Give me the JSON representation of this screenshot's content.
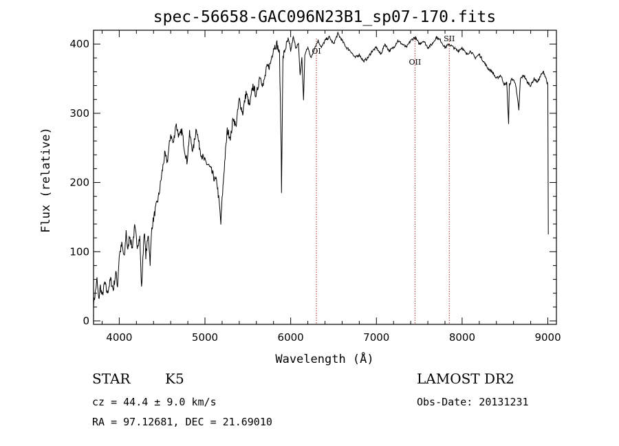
{
  "chart_data": {
    "type": "line",
    "title": "spec-56658-GAC096N23B1_sp07-170.fits",
    "xlabel": "Wavelength (Å)",
    "ylabel": "Flux (relative)",
    "xlim": [
      3700,
      9100
    ],
    "ylim": [
      -5,
      420
    ],
    "xticks": [
      4000,
      5000,
      6000,
      7000,
      8000,
      9000
    ],
    "yticks": [
      0,
      100,
      200,
      300,
      400
    ],
    "spectrum": [
      [
        3700,
        25
      ],
      [
        3720,
        40
      ],
      [
        3740,
        60
      ],
      [
        3760,
        30
      ],
      [
        3780,
        50
      ],
      [
        3800,
        35
      ],
      [
        3830,
        55
      ],
      [
        3860,
        40
      ],
      [
        3900,
        60
      ],
      [
        3930,
        45
      ],
      [
        3960,
        70
      ],
      [
        3980,
        50
      ],
      [
        4000,
        95
      ],
      [
        4030,
        110
      ],
      [
        4060,
        90
      ],
      [
        4080,
        130
      ],
      [
        4100,
        100
      ],
      [
        4120,
        125
      ],
      [
        4150,
        105
      ],
      [
        4180,
        135
      ],
      [
        4210,
        110
      ],
      [
        4240,
        120
      ],
      [
        4260,
        45
      ],
      [
        4290,
        130
      ],
      [
        4310,
        95
      ],
      [
        4340,
        125
      ],
      [
        4360,
        85
      ],
      [
        4380,
        135
      ],
      [
        4420,
        160
      ],
      [
        4460,
        180
      ],
      [
        4500,
        215
      ],
      [
        4530,
        240
      ],
      [
        4560,
        230
      ],
      [
        4600,
        270
      ],
      [
        4630,
        255
      ],
      [
        4660,
        285
      ],
      [
        4700,
        265
      ],
      [
        4730,
        275
      ],
      [
        4760,
        250
      ],
      [
        4790,
        230
      ],
      [
        4820,
        270
      ],
      [
        4860,
        245
      ],
      [
        4900,
        280
      ],
      [
        4930,
        255
      ],
      [
        4960,
        240
      ],
      [
        5000,
        230
      ],
      [
        5040,
        225
      ],
      [
        5080,
        215
      ],
      [
        5110,
        205
      ],
      [
        5140,
        200
      ],
      [
        5170,
        165
      ],
      [
        5185,
        140
      ],
      [
        5200,
        175
      ],
      [
        5230,
        230
      ],
      [
        5260,
        275
      ],
      [
        5300,
        265
      ],
      [
        5330,
        295
      ],
      [
        5360,
        280
      ],
      [
        5400,
        320
      ],
      [
        5440,
        300
      ],
      [
        5480,
        330
      ],
      [
        5520,
        310
      ],
      [
        5560,
        340
      ],
      [
        5600,
        325
      ],
      [
        5640,
        355
      ],
      [
        5680,
        340
      ],
      [
        5720,
        365
      ],
      [
        5760,
        370
      ],
      [
        5800,
        395
      ],
      [
        5840,
        400
      ],
      [
        5870,
        385
      ],
      [
        5889,
        250
      ],
      [
        5893,
        185
      ],
      [
        5896,
        225
      ],
      [
        5910,
        380
      ],
      [
        5940,
        395
      ],
      [
        5970,
        405
      ],
      [
        6000,
        390
      ],
      [
        6030,
        410
      ],
      [
        6060,
        395
      ],
      [
        6090,
        400
      ],
      [
        6110,
        355
      ],
      [
        6130,
        380
      ],
      [
        6150,
        320
      ],
      [
        6165,
        385
      ],
      [
        6200,
        395
      ],
      [
        6240,
        380
      ],
      [
        6280,
        395
      ],
      [
        6320,
        405
      ],
      [
        6360,
        395
      ],
      [
        6400,
        405
      ],
      [
        6450,
        410
      ],
      [
        6500,
        400
      ],
      [
        6550,
        415
      ],
      [
        6600,
        405
      ],
      [
        6650,
        395
      ],
      [
        6700,
        390
      ],
      [
        6750,
        380
      ],
      [
        6800,
        385
      ],
      [
        6850,
        375
      ],
      [
        6900,
        380
      ],
      [
        6950,
        390
      ],
      [
        7000,
        395
      ],
      [
        7050,
        385
      ],
      [
        7100,
        400
      ],
      [
        7150,
        390
      ],
      [
        7200,
        395
      ],
      [
        7250,
        405
      ],
      [
        7300,
        400
      ],
      [
        7350,
        395
      ],
      [
        7400,
        405
      ],
      [
        7450,
        410
      ],
      [
        7500,
        400
      ],
      [
        7550,
        405
      ],
      [
        7600,
        395
      ],
      [
        7650,
        400
      ],
      [
        7700,
        410
      ],
      [
        7750,
        405
      ],
      [
        7800,
        395
      ],
      [
        7850,
        400
      ],
      [
        7900,
        395
      ],
      [
        7950,
        390
      ],
      [
        8000,
        395
      ],
      [
        8050,
        385
      ],
      [
        8100,
        390
      ],
      [
        8150,
        380
      ],
      [
        8200,
        385
      ],
      [
        8250,
        375
      ],
      [
        8300,
        365
      ],
      [
        8350,
        360
      ],
      [
        8400,
        350
      ],
      [
        8450,
        355
      ],
      [
        8498,
        340
      ],
      [
        8520,
        345
      ],
      [
        8542,
        285
      ],
      [
        8550,
        340
      ],
      [
        8580,
        350
      ],
      [
        8620,
        345
      ],
      [
        8662,
        305
      ],
      [
        8680,
        350
      ],
      [
        8720,
        355
      ],
      [
        8760,
        345
      ],
      [
        8800,
        340
      ],
      [
        8840,
        350
      ],
      [
        8880,
        345
      ],
      [
        8920,
        355
      ],
      [
        8950,
        360
      ],
      [
        8980,
        350
      ],
      [
        9000,
        340
      ],
      [
        9005,
        125
      ]
    ],
    "lines": [
      {
        "label": "OI",
        "x": 6300
      },
      {
        "label": "OII",
        "x": 7450
      },
      {
        "label": "SII",
        "x": 7850
      }
    ]
  },
  "info": {
    "class_label": "STAR",
    "subclass": "K5",
    "survey": "LAMOST DR2",
    "redshift_text": "cz = 44.4 ± 9.0 km/s",
    "obs_date_text": "Obs-Date: 20131231",
    "coords_text": "RA =  97.12681, DEC =  21.69010"
  }
}
